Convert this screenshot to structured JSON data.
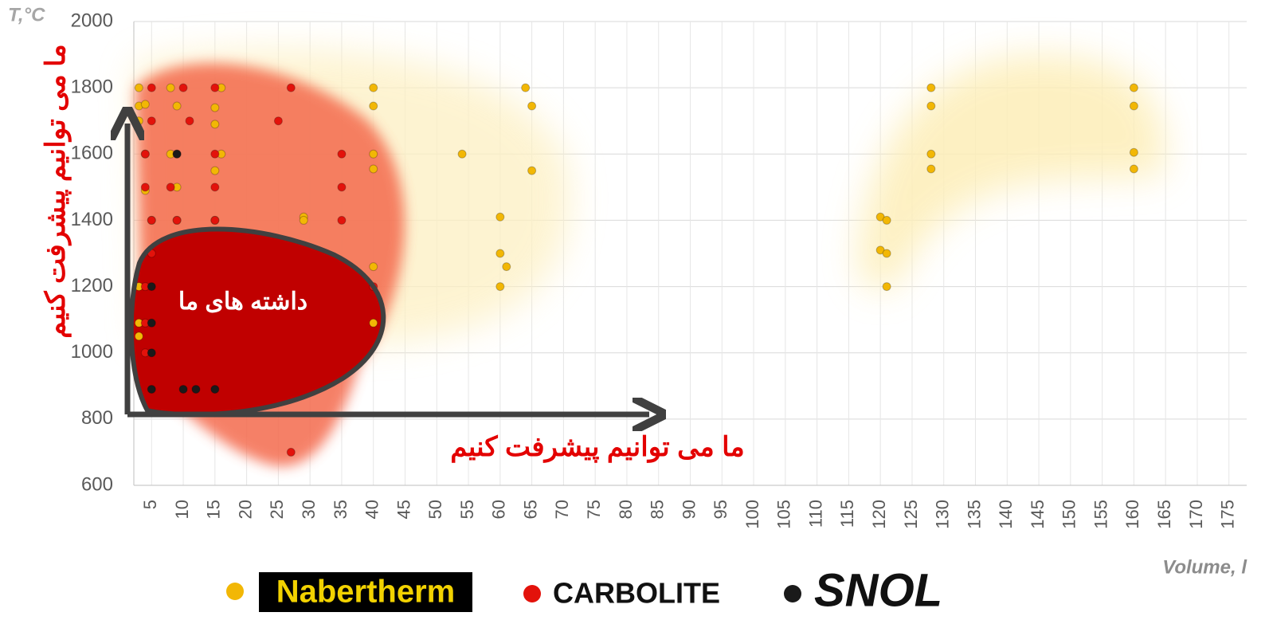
{
  "chart_data": {
    "type": "scatter",
    "y_label": "T,°C",
    "x_label": "Volume, l",
    "annotations": [
      "داشته های ما",
      "ما می توانیم پیشرفت کنیم",
      "ما می توانیم پیشرفت کنیم"
    ],
    "xlim": [
      2.2,
      177.8
    ],
    "ylim": [
      600,
      2000
    ],
    "xticks": [
      5,
      10,
      15,
      20,
      25,
      30,
      35,
      40,
      45,
      50,
      55,
      60,
      65,
      70,
      75,
      80,
      85,
      90,
      95,
      100,
      105,
      110,
      115,
      120,
      125,
      130,
      135,
      140,
      145,
      150,
      155,
      160,
      165,
      170,
      175
    ],
    "yticks": [
      600,
      800,
      1000,
      1200,
      1400,
      1600,
      1800,
      2000
    ],
    "grid": true,
    "series": [
      {
        "name": "Nabertherm",
        "color": "#f2b705",
        "x": [
          3,
          3,
          3,
          4,
          4,
          5,
          3,
          3,
          3,
          4,
          8,
          9,
          8,
          9,
          9,
          15,
          15,
          15,
          16,
          16,
          15,
          29,
          29,
          40,
          40,
          40,
          40,
          40,
          40,
          54,
          64,
          65,
          65,
          60,
          60,
          61,
          60,
          120,
          121,
          120,
          121,
          121,
          128,
          128,
          128,
          128,
          160,
          160,
          160,
          160
        ],
        "values": [
          1800,
          1745,
          1700,
          1600,
          1490,
          1400,
          1200,
          1090,
          1050,
          1750,
          1800,
          1745,
          1600,
          1500,
          1400,
          1740,
          1690,
          1550,
          1800,
          1600,
          1400,
          1410,
          1400,
          1800,
          1745,
          1600,
          1555,
          1260,
          1090,
          1600,
          1800,
          1745,
          1550,
          1410,
          1300,
          1260,
          1200,
          1410,
          1400,
          1310,
          1300,
          1200,
          1800,
          1745,
          1600,
          1555,
          1800,
          1745,
          1605,
          1555
        ]
      },
      {
        "name": "CARBOLITE",
        "color": "#e3120b",
        "x": [
          5,
          5,
          4,
          4,
          5,
          5,
          4,
          4,
          4,
          10,
          11,
          9,
          8,
          9,
          15,
          15,
          15,
          15,
          27,
          25,
          35,
          35,
          35,
          27,
          40
        ],
        "values": [
          1800,
          1700,
          1600,
          1500,
          1400,
          1300,
          1200,
          1090,
          1000,
          1800,
          1700,
          1600,
          1500,
          1400,
          1800,
          1600,
          1500,
          1400,
          1800,
          1700,
          1600,
          1500,
          1400,
          700,
          1200
        ]
      },
      {
        "name": "SNOL",
        "color": "#1a1a1a",
        "x": [
          5,
          5,
          5,
          5,
          9,
          10,
          12,
          15
        ],
        "values": [
          890,
          1000,
          1090,
          1200,
          1600,
          890,
          890,
          890
        ]
      }
    ]
  }
}
